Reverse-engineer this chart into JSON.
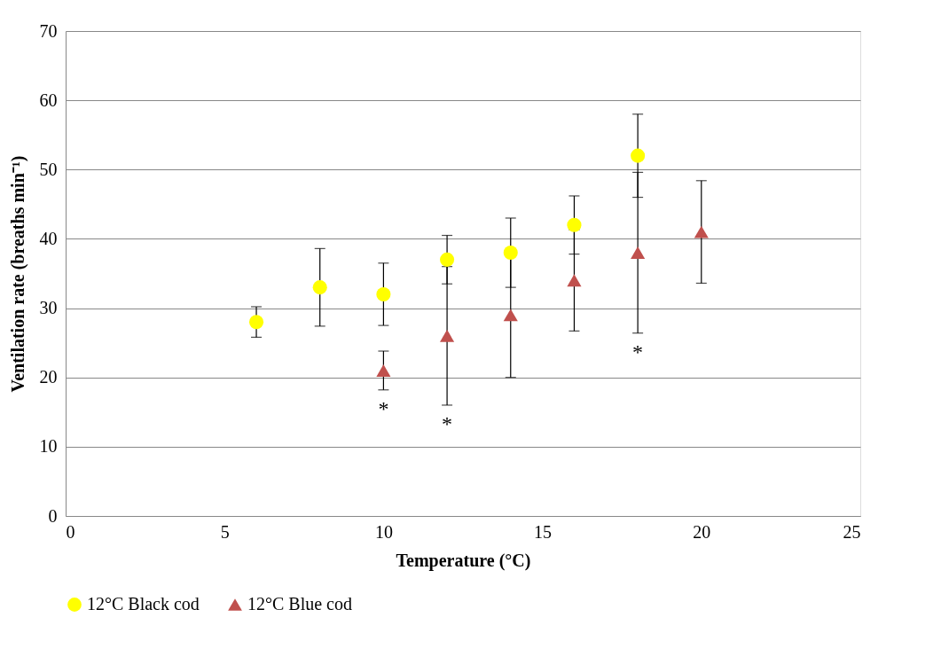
{
  "chart_data": {
    "type": "scatter",
    "xlabel": "Temperature (°C)",
    "ylabel": "Ventilation rate (breaths min⁻¹)",
    "xlim": [
      0,
      25
    ],
    "xticks": [
      0,
      5,
      10,
      15,
      20,
      25
    ],
    "ylim": [
      0,
      70
    ],
    "yticks": [
      0,
      10,
      20,
      30,
      40,
      50,
      60,
      70
    ],
    "grid": "y",
    "legend": "bottom",
    "series": [
      {
        "name": "12°C Black cod",
        "color": "#ffff00",
        "marker": "circle",
        "x": [
          6,
          8,
          10,
          12,
          14,
          16,
          18
        ],
        "values": [
          28,
          33,
          32,
          37,
          38,
          42,
          52
        ],
        "errors": [
          2.2,
          5.6,
          4.5,
          3.5,
          5,
          4.2,
          6
        ]
      },
      {
        "name": "12°C Blue cod",
        "color": "#c0504d",
        "marker": "triangle",
        "x": [
          10,
          12,
          14,
          16,
          18,
          20
        ],
        "values": [
          21,
          26,
          29,
          34,
          38,
          41
        ],
        "errors": [
          2.8,
          10,
          9,
          7.3,
          11.6,
          7.4
        ]
      }
    ],
    "annotations": [
      {
        "text": "*",
        "x": 10,
        "y": 18.2
      },
      {
        "text": "*",
        "x": 12,
        "y": 16
      },
      {
        "text": "*",
        "x": 18,
        "y": 26.4
      }
    ]
  }
}
